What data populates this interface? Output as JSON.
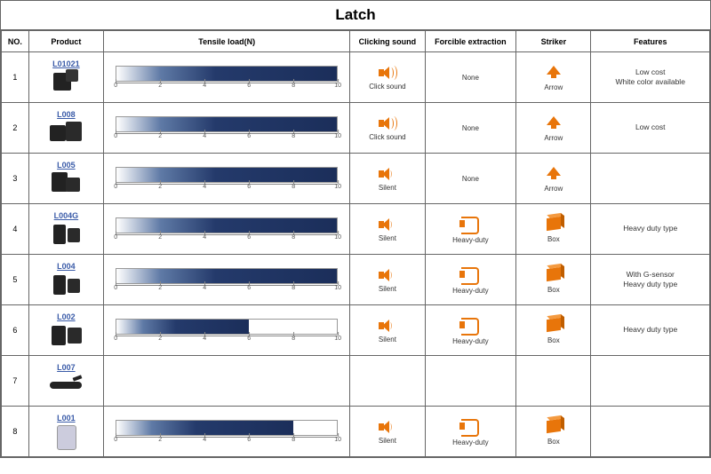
{
  "title": "Latch",
  "columns": {
    "no": "NO.",
    "product": "Product",
    "load": "Tensile load(N)",
    "click": "Clicking sound",
    "force": "Forcible extraction",
    "striker": "Striker",
    "features": "Features"
  },
  "axis": {
    "min": 0,
    "max": 10,
    "step": 2,
    "ticks": [
      0,
      2,
      4,
      6,
      8,
      10
    ]
  },
  "bar_style": {
    "gradient_from": "#ffffff",
    "gradient_mid": "#5f7aa6",
    "gradient_to": "#1b2e5a",
    "track_border": "#999999",
    "axis_color": "#888888",
    "tick_fontsize": 7
  },
  "icon_color": "#e8750a",
  "click_labels": {
    "loud": "Click sound",
    "quiet": "Silent"
  },
  "force_labels": {
    "none": "None",
    "heavy": "Heavy-duty"
  },
  "striker_labels": {
    "arrow": "Arrow",
    "box": "Box"
  },
  "rows": [
    {
      "no": "1",
      "code": "L01021",
      "img": "pi1",
      "load": 10,
      "show_bar": true,
      "click": "loud",
      "force": "none",
      "striker": "arrow",
      "features": "Low cost\nWhite color available"
    },
    {
      "no": "2",
      "code": "L008",
      "img": "pi2",
      "load": 10,
      "show_bar": true,
      "click": "loud",
      "force": "none",
      "striker": "arrow",
      "features": "Low cost"
    },
    {
      "no": "3",
      "code": "L005",
      "img": "pi3",
      "load": 10,
      "show_bar": true,
      "click": "quiet",
      "force": "none",
      "striker": "arrow",
      "features": ""
    },
    {
      "no": "4",
      "code": "L004G",
      "img": "pi4",
      "load": 10,
      "show_bar": true,
      "click": "quiet",
      "force": "heavy",
      "striker": "box",
      "features": "Heavy duty type"
    },
    {
      "no": "5",
      "code": "L004",
      "img": "pi5",
      "load": 10,
      "show_bar": true,
      "click": "quiet",
      "force": "heavy",
      "striker": "box",
      "features": "With G-sensor\nHeavy duty type"
    },
    {
      "no": "6",
      "code": "L002",
      "img": "pi6",
      "load": 6,
      "show_bar": true,
      "click": "quiet",
      "force": "heavy",
      "striker": "box",
      "features": "Heavy duty type"
    },
    {
      "no": "7",
      "code": "L007",
      "img": "pi7",
      "load": 0,
      "show_bar": false,
      "click": "",
      "force": "",
      "striker": "",
      "features": ""
    },
    {
      "no": "8",
      "code": "L001",
      "img": "pi8",
      "load": 8,
      "show_bar": true,
      "click": "quiet",
      "force": "heavy",
      "striker": "box",
      "features": ""
    }
  ]
}
